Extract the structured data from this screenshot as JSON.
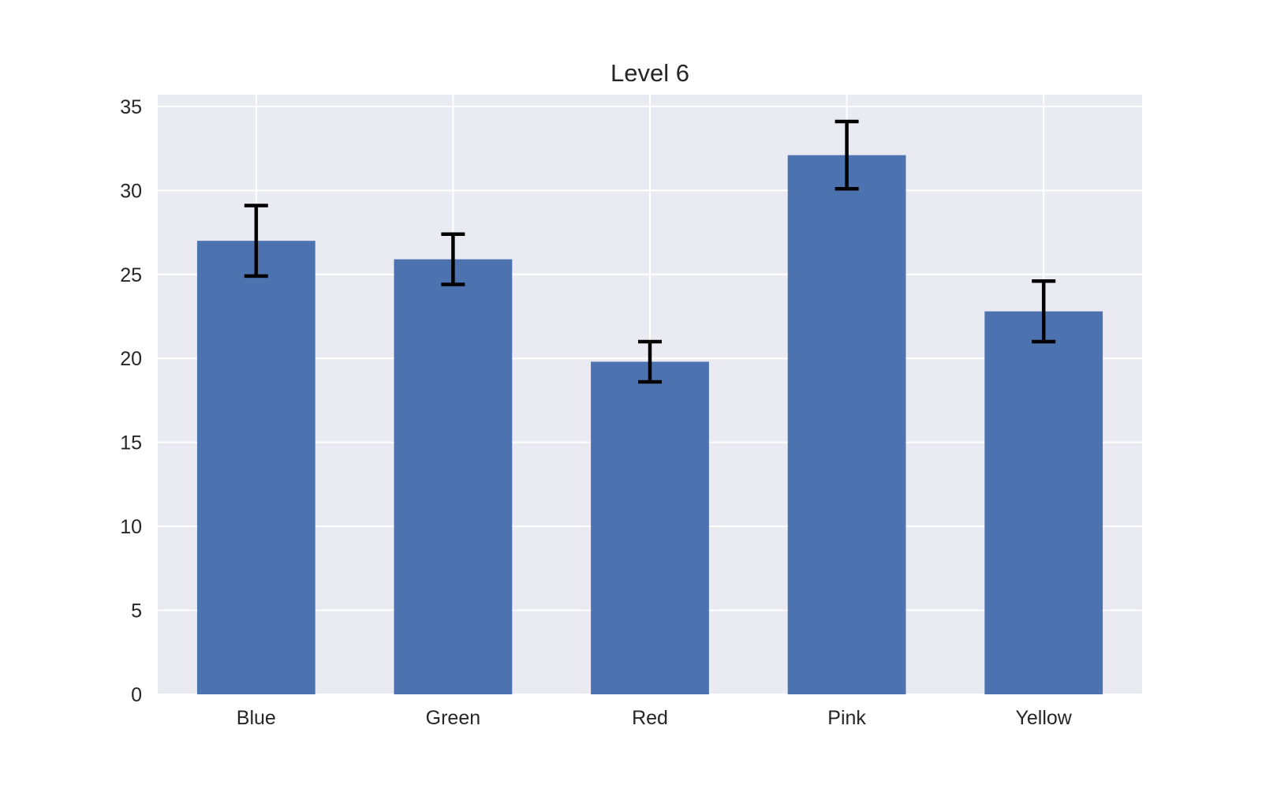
{
  "chart_data": {
    "type": "bar",
    "title": "Level 6",
    "xlabel": "",
    "ylabel": "",
    "categories": [
      "Blue",
      "Green",
      "Red",
      "Pink",
      "Yellow"
    ],
    "values": [
      27.0,
      25.9,
      19.8,
      32.1,
      22.8
    ],
    "errors": [
      2.1,
      1.5,
      1.2,
      2.0,
      1.8
    ],
    "ylim": [
      0,
      35.7
    ],
    "yticks": [
      0,
      5,
      10,
      15,
      20,
      25,
      30,
      35
    ],
    "grid": true,
    "colors": {
      "bar": "#4c72b0",
      "plot_background": "#eaeaf2",
      "grid": "#ffffff",
      "error_bar": "#000000"
    }
  }
}
